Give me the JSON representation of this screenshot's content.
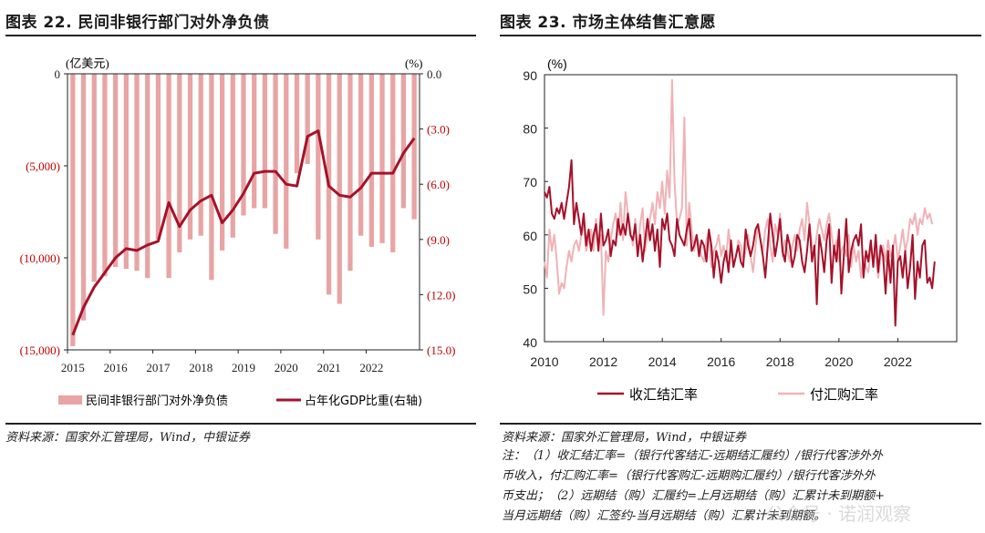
{
  "panels": {
    "left_title": "图表 22. 民间非银行部门对外净负债",
    "right_title": "图表 23. 市场主体结售汇意愿",
    "left_source": "资料来源：国家外汇管理局，Wind，中银证券",
    "right_source": "资料来源：国家外汇管理局，Wind，中银证券",
    "right_note_lines": [
      "注：（1）收汇结汇率=（银行代客结汇-远期结汇履约）/银行代客涉外外",
      "币收入，付汇购汇率=（银行代客购汇-远期购汇履约）/银行代客涉外外",
      "币支出；（2）远期结（购）汇履约=上月远期结（购）汇累计未到期额+",
      "当月远期结（购）汇签约-当月远期结（购）汇累计未到期额。"
    ],
    "watermark": "公众号 · 诺润观察"
  },
  "colors": {
    "bar": "#e8a4a4",
    "line_dark": "#a5122a",
    "line_light": "#f0b2b6",
    "axis_red": "#c00000"
  },
  "chart_data": [
    {
      "type": "bar+line",
      "title": "民间非银行部门对外净负债",
      "left_axis_unit": "(亿美元)",
      "right_axis_unit": "(%)",
      "left_ticks": [
        "0",
        "(5,000)",
        "(10,000)",
        "(15,000)"
      ],
      "left_tick_values": [
        0,
        -5000,
        -10000,
        -15000
      ],
      "right_ticks": [
        "0.0",
        "(3.0)",
        "(6.0)",
        "(9.0)",
        "(12.0)",
        "(15.0)"
      ],
      "right_tick_values": [
        0,
        -3,
        -6,
        -9,
        -12,
        -15
      ],
      "left_ylim": [
        -15000,
        0
      ],
      "right_ylim": [
        -15,
        0
      ],
      "x_ticks": [
        "2015",
        "2016",
        "2017",
        "2018",
        "2019",
        "2020",
        "2021",
        "2022"
      ],
      "x_start": "2015Q1",
      "bar_series": {
        "name": "民间非银行部门对外净负债",
        "values": [
          -14800,
          -13400,
          -11300,
          -11000,
          -10500,
          -10600,
          -10700,
          -11100,
          -9000,
          -11100,
          -9700,
          -9000,
          -8800,
          -11200,
          -9600,
          -8900,
          -7700,
          -7300,
          -7300,
          -8700,
          -9500,
          -5400,
          -4900,
          -9000,
          -12000,
          -12500,
          -10700,
          -8800,
          -9400,
          -9200,
          -9700,
          -7300,
          -7900
        ]
      },
      "line_series": {
        "name": "占年化GDP比重(右轴)",
        "values": [
          -14.2,
          -12.7,
          -11.6,
          -10.8,
          -10.0,
          -9.5,
          -9.6,
          -9.3,
          -9.1,
          -7.0,
          -8.3,
          -7.4,
          -6.9,
          -6.6,
          -8.1,
          -7.4,
          -6.5,
          -5.4,
          -5.3,
          -5.3,
          -6.0,
          -6.1,
          -3.4,
          -3.1,
          -6.1,
          -6.6,
          -6.7,
          -6.2,
          -5.4,
          -5.4,
          -5.4,
          -4.3,
          -3.5
        ]
      }
    },
    {
      "type": "line",
      "title": "市场主体结售汇意愿",
      "ylabel": "(%)",
      "ylim": [
        40,
        90
      ],
      "y_ticks": [
        "40",
        "50",
        "60",
        "70",
        "80",
        "90"
      ],
      "y_tick_values": [
        40,
        50,
        60,
        70,
        80,
        90
      ],
      "x_ticks": [
        "2010",
        "2012",
        "2014",
        "2016",
        "2018",
        "2020",
        "2022"
      ],
      "x_tick_values": [
        2010,
        2012,
        2014,
        2016,
        2018,
        2020,
        2022
      ],
      "x_range": [
        2010,
        2024
      ],
      "x_start": 2010.0,
      "x_step_months": 1,
      "series": [
        {
          "name": "收汇结汇率",
          "values": [
            68,
            67,
            69,
            64,
            63,
            65,
            64,
            66,
            63,
            66,
            69,
            74,
            62,
            66,
            63,
            60,
            64,
            58,
            61,
            57,
            60,
            62,
            57,
            64,
            58,
            59,
            61,
            56,
            59,
            58,
            63,
            60,
            62,
            60,
            64,
            60,
            59,
            62,
            56,
            60,
            55,
            59,
            63,
            59,
            62,
            57,
            61,
            54,
            63,
            61,
            64,
            59,
            58,
            56,
            63,
            60,
            59,
            58,
            61,
            63,
            57,
            58,
            60,
            56,
            59,
            58,
            55,
            61,
            58,
            52,
            57,
            55,
            51,
            55,
            57,
            53,
            59,
            54,
            56,
            58,
            55,
            54,
            61,
            58,
            56,
            58,
            61,
            62,
            59,
            56,
            52,
            58,
            64,
            60,
            56,
            59,
            63,
            57,
            55,
            60,
            58,
            54,
            56,
            60,
            59,
            55,
            53,
            57,
            62,
            55,
            58,
            47,
            60,
            57,
            53,
            59,
            62,
            51,
            58,
            55,
            61,
            49,
            56,
            63,
            53,
            57,
            59,
            60,
            58,
            62,
            52,
            57,
            55,
            59,
            54,
            60,
            53,
            58,
            56,
            49,
            57,
            51,
            58,
            43,
            55,
            56,
            52,
            57,
            50,
            54,
            60,
            48,
            55,
            52,
            58,
            59,
            51,
            52,
            50,
            55
          ]
        },
        {
          "name": "付汇购汇率",
          "values": [
            55,
            52,
            61,
            57,
            60,
            55,
            49,
            51,
            50,
            54,
            57,
            55,
            58,
            59,
            57,
            60,
            62,
            57,
            59,
            61,
            57,
            63,
            58,
            60,
            45,
            57,
            55,
            59,
            62,
            64,
            60,
            66,
            59,
            68,
            64,
            61,
            58,
            63,
            56,
            62,
            65,
            57,
            60,
            63,
            66,
            62,
            68,
            65,
            70,
            64,
            72,
            67,
            89,
            70,
            62,
            63,
            65,
            82,
            58,
            66,
            61,
            57,
            60,
            58,
            56,
            55,
            59,
            61,
            54,
            57,
            58,
            60,
            56,
            58,
            55,
            61,
            57,
            54,
            56,
            59,
            58,
            55,
            57,
            60,
            56,
            53,
            58,
            62,
            59,
            57,
            61,
            63,
            58,
            55,
            62,
            60,
            64,
            56,
            59,
            57,
            55,
            58,
            60,
            57,
            61,
            63,
            59,
            66,
            62,
            58,
            57,
            60,
            63,
            61,
            59,
            62,
            64,
            60,
            57,
            59,
            55,
            57,
            58,
            56,
            60,
            54,
            58,
            55,
            57,
            52,
            56,
            54,
            53,
            58,
            55,
            57,
            52,
            56,
            58,
            55,
            59,
            56,
            57,
            60,
            55,
            58,
            61,
            57,
            59,
            63,
            62,
            64,
            60,
            63,
            62,
            65,
            63,
            64,
            62
          ]
        }
      ]
    }
  ]
}
